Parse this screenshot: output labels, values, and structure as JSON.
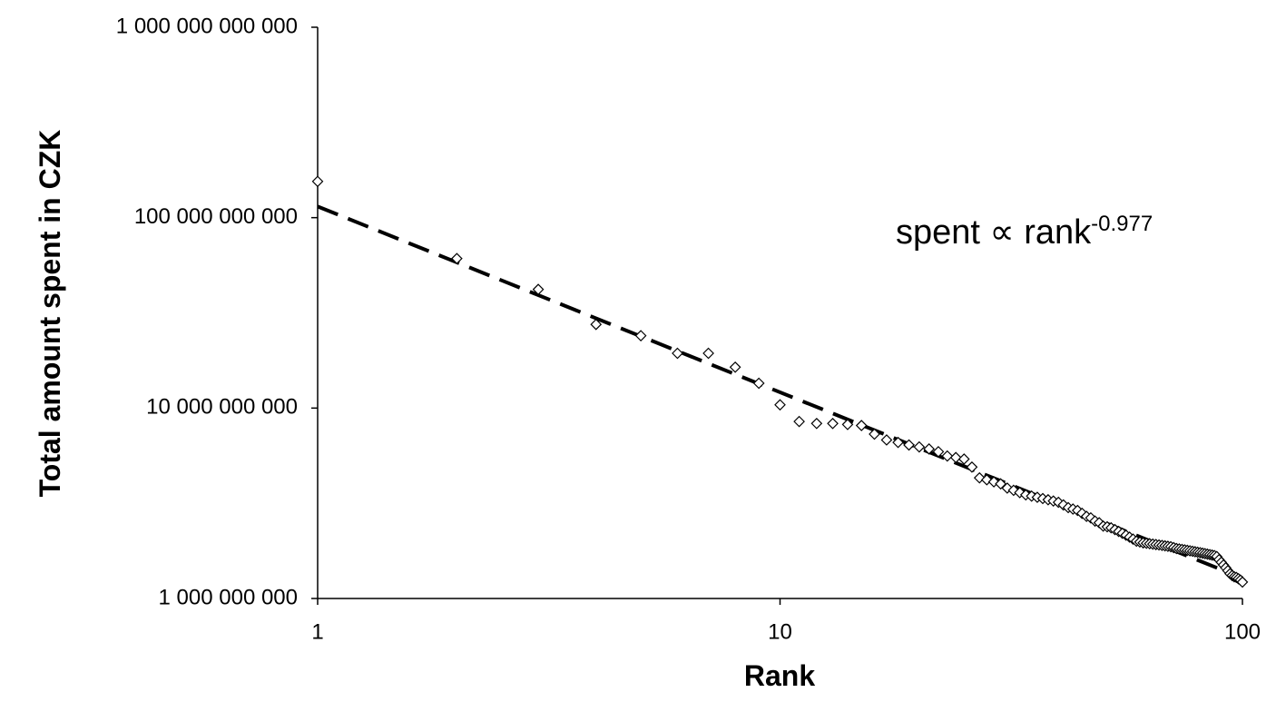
{
  "chart_data": {
    "type": "scatter",
    "xscale": "log",
    "yscale": "log",
    "x_label": "Rank",
    "y_label": "Total amount spent in CZK",
    "annotation": {
      "text": "spent ∝ rank",
      "superscript": "-0.977"
    },
    "xlim": [
      1,
      100
    ],
    "ylim": [
      1000000000.0,
      1000000000000.0
    ],
    "xticks": [
      1,
      10,
      100
    ],
    "yticks": [
      {
        "value": 1000000000.0,
        "label": "1 000 000 000"
      },
      {
        "value": 10000000000.0,
        "label": "10 000 000 000"
      },
      {
        "value": 100000000000.0,
        "label": "100 000 000 000"
      },
      {
        "value": 1000000000000.0,
        "label": "1 000 000 000 000"
      }
    ],
    "color": "#000000",
    "marker": "diamond",
    "x": [
      1,
      2,
      3,
      4,
      5,
      6,
      7,
      8,
      9,
      10,
      11,
      12,
      13,
      14,
      15,
      16,
      17,
      18,
      19,
      20,
      21,
      22,
      23,
      24,
      25,
      26,
      27,
      28,
      29,
      30,
      31,
      32,
      33,
      34,
      35,
      36,
      37,
      38,
      39,
      40,
      41,
      42,
      43,
      44,
      45,
      46,
      47,
      48,
      49,
      50,
      51,
      52,
      53,
      54,
      55,
      56,
      57,
      58,
      59,
      60,
      61,
      62,
      63,
      64,
      65,
      66,
      67,
      68,
      69,
      70,
      71,
      72,
      73,
      74,
      75,
      76,
      77,
      78,
      79,
      80,
      81,
      82,
      83,
      84,
      85,
      86,
      87,
      88,
      89,
      90,
      91,
      92,
      93,
      94,
      95,
      96,
      97,
      98,
      99,
      100
    ],
    "values": [
      155000000000.0,
      61000000000.0,
      42000000000.0,
      27500000000.0,
      24000000000.0,
      19400000000.0,
      19400000000.0,
      16400000000.0,
      13500000000.0,
      10400000000.0,
      8500000000.0,
      8300000000.0,
      8300000000.0,
      8200000000.0,
      8100000000.0,
      7300000000.0,
      6800000000.0,
      6600000000.0,
      6400000000.0,
      6250000000.0,
      6100000000.0,
      5900000000.0,
      5600000000.0,
      5500000000.0,
      5400000000.0,
      4900000000.0,
      4300000000.0,
      4200000000.0,
      4100000000.0,
      4000000000.0,
      3800000000.0,
      3700000000.0,
      3600000000.0,
      3500000000.0,
      3450000000.0,
      3400000000.0,
      3350000000.0,
      3300000000.0,
      3250000000.0,
      3200000000.0,
      3100000000.0,
      3000000000.0,
      2950000000.0,
      2900000000.0,
      2800000000.0,
      2700000000.0,
      2650000000.0,
      2550000000.0,
      2500000000.0,
      2400000000.0,
      2380000000.0,
      2350000000.0,
      2300000000.0,
      2250000000.0,
      2200000000.0,
      2150000000.0,
      2100000000.0,
      2050000000.0,
      2000000000.0,
      1980000000.0,
      1960000000.0,
      1950000000.0,
      1940000000.0,
      1930000000.0,
      1920000000.0,
      1910000000.0,
      1900000000.0,
      1890000000.0,
      1880000000.0,
      1870000000.0,
      1850000000.0,
      1830000000.0,
      1820000000.0,
      1810000000.0,
      1800000000.0,
      1790000000.0,
      1780000000.0,
      1770000000.0,
      1760000000.0,
      1750000000.0,
      1740000000.0,
      1730000000.0,
      1720000000.0,
      1710000000.0,
      1700000000.0,
      1690000000.0,
      1680000000.0,
      1660000000.0,
      1600000000.0,
      1550000000.0,
      1500000000.0,
      1450000000.0,
      1400000000.0,
      1350000000.0,
      1320000000.0,
      1300000000.0,
      1290000000.0,
      1270000000.0,
      1250000000.0,
      1220000000.0
    ],
    "trendline": {
      "x": [
        1,
        100
      ],
      "values": [
        114500000000.0,
        1280000000.0
      ],
      "style": "dashed",
      "color": "#000000"
    }
  }
}
